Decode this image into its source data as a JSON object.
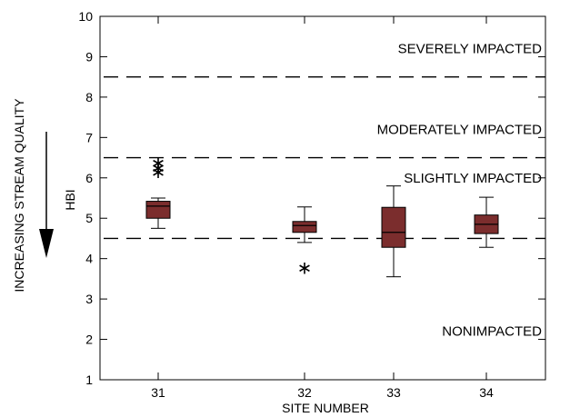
{
  "chart_data": {
    "type": "box",
    "xlabel": "SITE NUMBER",
    "ylabel": "HBI",
    "side_label": "INCREASING STREAM QUALITY",
    "ylim": [
      1,
      10
    ],
    "yticks": [
      "1",
      "2",
      "3",
      "4",
      "5",
      "6",
      "7",
      "8",
      "9",
      "10"
    ],
    "categories": [
      "31",
      "32",
      "33",
      "34"
    ],
    "box_color": "#7b2d2d",
    "boxes": [
      {
        "site": "31",
        "whisker_low": 4.75,
        "q1": 5.0,
        "median": 5.3,
        "q3": 5.42,
        "whisker_high": 5.5,
        "outliers": [
          6.2,
          6.3,
          6.42
        ]
      },
      {
        "site": "32",
        "whisker_low": 4.4,
        "q1": 4.65,
        "median": 4.82,
        "q3": 4.92,
        "whisker_high": 5.28,
        "outliers": [
          3.82
        ]
      },
      {
        "site": "33",
        "whisker_low": 3.55,
        "q1": 4.28,
        "median": 4.65,
        "q3": 5.27,
        "whisker_high": 5.8,
        "outliers": []
      },
      {
        "site": "34",
        "whisker_low": 4.28,
        "q1": 4.62,
        "median": 4.85,
        "q3": 5.08,
        "whisker_high": 5.52,
        "outliers": []
      }
    ],
    "thresholds": [
      4.5,
      6.5,
      8.5
    ],
    "zones": [
      "SEVERELY IMPACTED",
      "MODERATELY IMPACTED",
      "SLIGHTLY IMPACTED",
      "NONIMPACTED"
    ],
    "zone_values": [
      9.2,
      7.2,
      6.0,
      2.2
    ]
  }
}
